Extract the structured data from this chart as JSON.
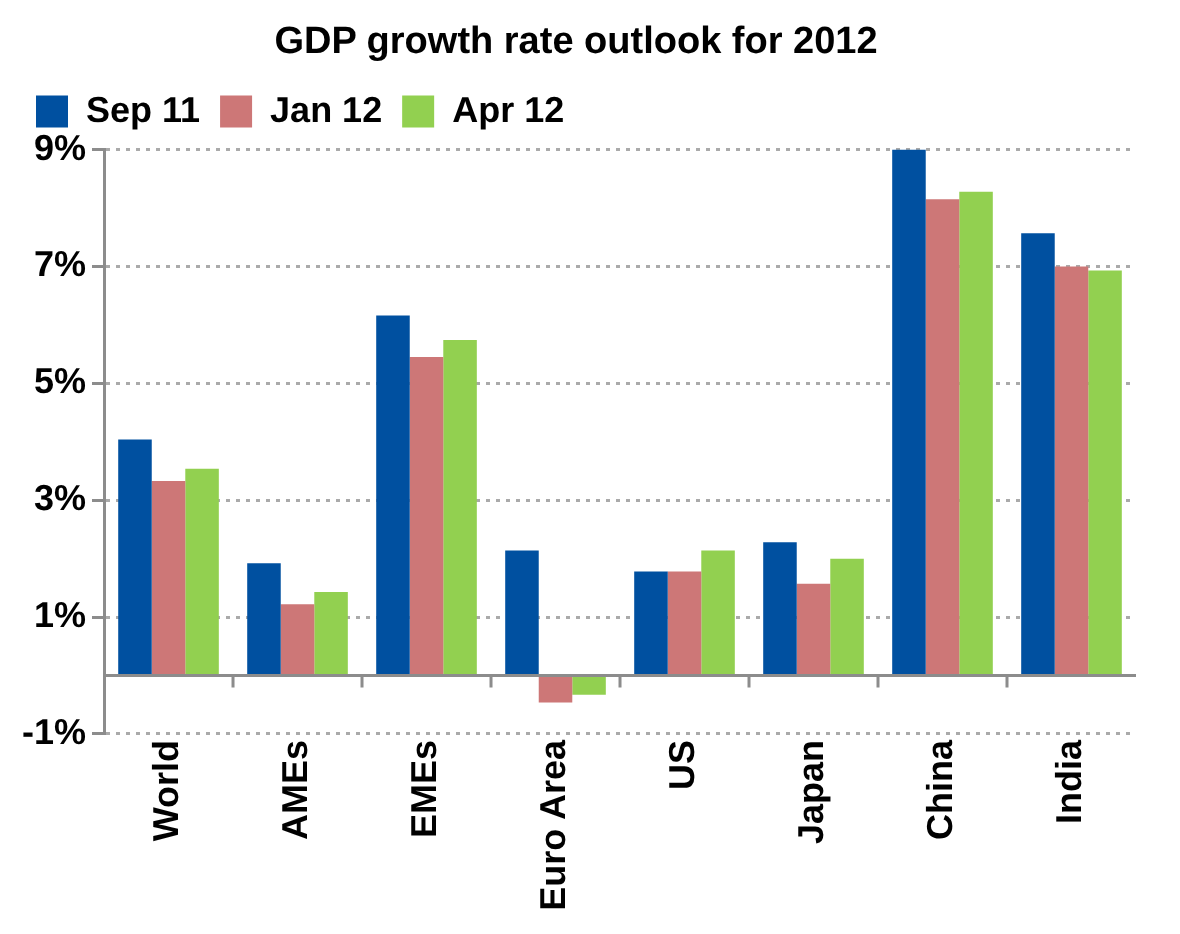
{
  "chart_data": {
    "type": "bar",
    "title": "GDP growth rate outlook for 2012",
    "categories": [
      "World",
      "AMEs",
      "EMEs",
      "Euro Area",
      "US",
      "Japan",
      "China",
      "India"
    ],
    "series": [
      {
        "name": "Sep 11",
        "color": "#0050a0",
        "values": [
          4.04,
          1.92,
          6.16,
          2.14,
          1.78,
          2.28,
          9.0,
          7.57
        ]
      },
      {
        "name": "Jan 12",
        "color": "#cd7777",
        "values": [
          3.33,
          1.22,
          5.45,
          -0.46,
          1.78,
          1.57,
          8.15,
          7.0
        ]
      },
      {
        "name": "Apr 12",
        "color": "#92d050",
        "values": [
          3.54,
          1.43,
          5.74,
          -0.33,
          2.14,
          2.0,
          8.28,
          6.93
        ]
      }
    ],
    "ylim": [
      -1,
      9
    ],
    "yticks": [
      {
        "value": 9,
        "label": "9%"
      },
      {
        "value": 7,
        "label": "7%"
      },
      {
        "value": 5,
        "label": "5%"
      },
      {
        "value": 3,
        "label": "3%"
      },
      {
        "value": 1,
        "label": "1%"
      },
      {
        "value": -1,
        "label": "-1%"
      }
    ],
    "grid": "y",
    "legend": "top left"
  }
}
